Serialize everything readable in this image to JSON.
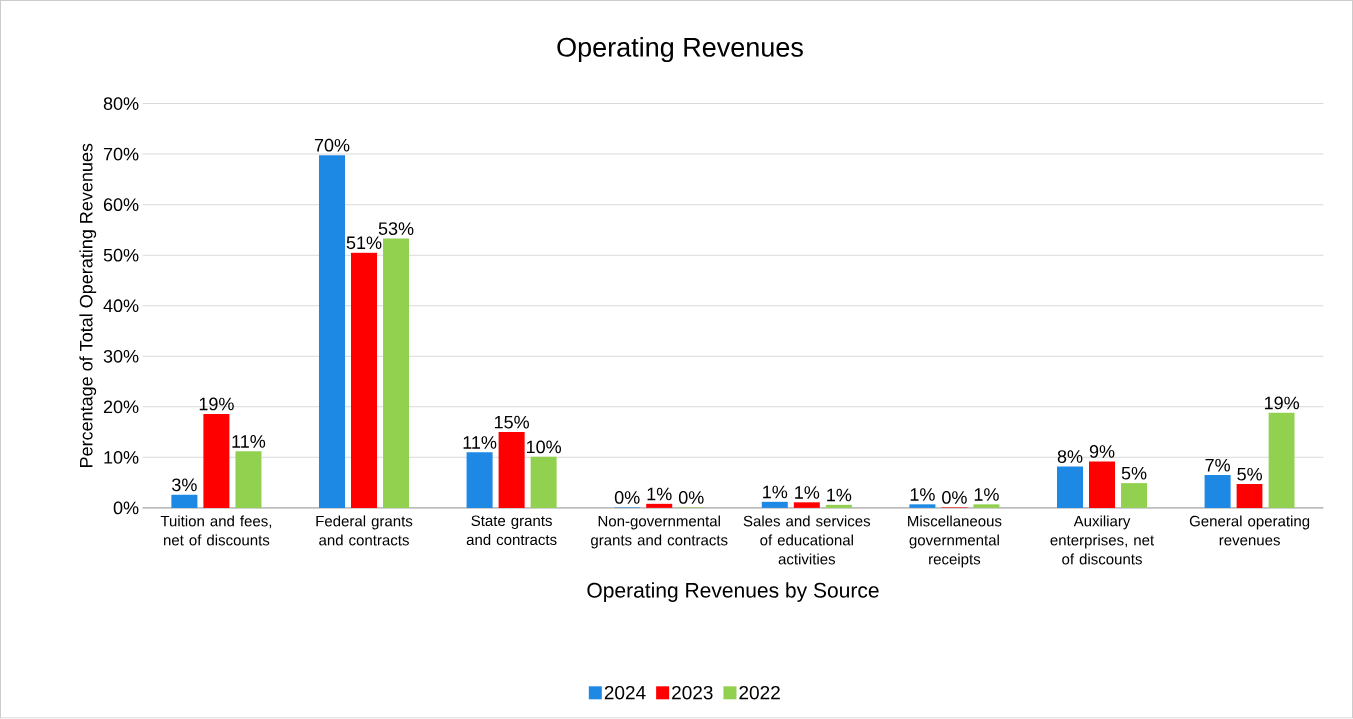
{
  "chart_data": {
    "type": "bar",
    "title": "Operating Revenues",
    "xlabel": "Operating Revenues by Source",
    "ylabel": "Percentage of Total Operating Revenues",
    "categories": [
      "Tuition and fees, net of discounts",
      "Federal grants and contracts",
      "State grants and contracts",
      "Non-governmental grants and contracts",
      "Sales and services of educational activities",
      "Miscellaneous governmental receipts",
      "Auxiliary enterprises, net of discounts",
      "General operating revenues"
    ],
    "series": [
      {
        "name": "2024",
        "color": "#1e88e5",
        "values": [
          2.6,
          69.8,
          11,
          0.1,
          1.2,
          0.7,
          8.2,
          6.5
        ],
        "value_labels": [
          "3%",
          "70%",
          "11%",
          "0%",
          "1%",
          "1%",
          "8%",
          "7%"
        ]
      },
      {
        "name": "2023",
        "color": "#ff0000",
        "values": [
          18.6,
          50.5,
          15,
          0.8,
          1.1,
          0.1,
          9.2,
          4.7
        ],
        "value_labels": [
          "19%",
          "51%",
          "15%",
          "1%",
          "1%",
          "0%",
          "9%",
          "5%"
        ]
      },
      {
        "name": "2022",
        "color": "#92d050",
        "values": [
          11.2,
          53.3,
          10.1,
          0.1,
          0.6,
          0.7,
          4.9,
          18.8
        ],
        "value_labels": [
          "11%",
          "53%",
          "10%",
          "0%",
          "1%",
          "1%",
          "5%",
          "19%"
        ]
      }
    ],
    "ylim": [
      0,
      80
    ],
    "yticks": [
      {
        "value": 0,
        "label": "0%"
      },
      {
        "value": 10,
        "label": "10%"
      },
      {
        "value": 20,
        "label": "20%"
      },
      {
        "value": 30,
        "label": "30%"
      },
      {
        "value": 40,
        "label": "40%"
      },
      {
        "value": 50,
        "label": "50%"
      },
      {
        "value": 60,
        "label": "60%"
      },
      {
        "value": 70,
        "label": "70%"
      },
      {
        "value": 80,
        "label": "80%"
      }
    ],
    "grid": "y",
    "legend": "bottom"
  }
}
